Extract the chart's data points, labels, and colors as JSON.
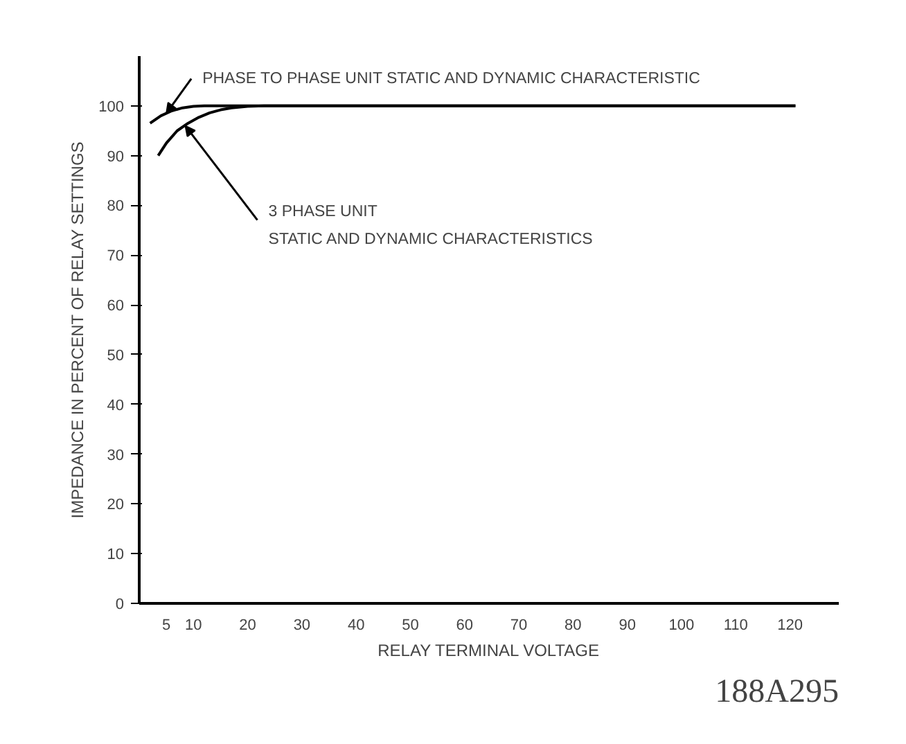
{
  "chart_data": {
    "type": "line",
    "xlabel": "RELAY TERMINAL VOLTAGE",
    "ylabel": "IMPEDANCE IN PERCENT OF RELAY SETTINGS",
    "xlim": [
      0,
      129
    ],
    "ylim": [
      0,
      110
    ],
    "xticks": [
      5,
      10,
      20,
      30,
      40,
      50,
      60,
      70,
      80,
      90,
      100,
      110,
      120
    ],
    "yticks": [
      0,
      10,
      20,
      30,
      40,
      50,
      60,
      70,
      80,
      90,
      100
    ],
    "grid": false,
    "marker": "none",
    "line_style": "solid",
    "series": [
      {
        "color": "#000000",
        "x": [
          2,
          4,
          6,
          8,
          10,
          12,
          14,
          20,
          121
        ],
        "values": [
          96.5,
          98,
          99,
          99.6,
          99.9,
          100,
          100,
          100,
          100
        ]
      },
      {
        "color": "#000000",
        "x": [
          3.5,
          5,
          7,
          9,
          11,
          13,
          15,
          17,
          20,
          23,
          121
        ],
        "values": [
          90,
          92.5,
          95,
          96.5,
          97.7,
          98.6,
          99.2,
          99.6,
          99.9,
          100,
          100
        ]
      }
    ],
    "annotations": [
      {
        "text": "PHASE TO PHASE UNIT STATIC AND DYNAMIC CHARACTERISTIC",
        "x": 5,
        "y": 98.5
      },
      {
        "text": "3 PHASE  UNIT\nSTATIC AND DYNAMIC CHARACTERISTICS",
        "x": 8.5,
        "y": 96
      },
      "188A295"
    ]
  }
}
